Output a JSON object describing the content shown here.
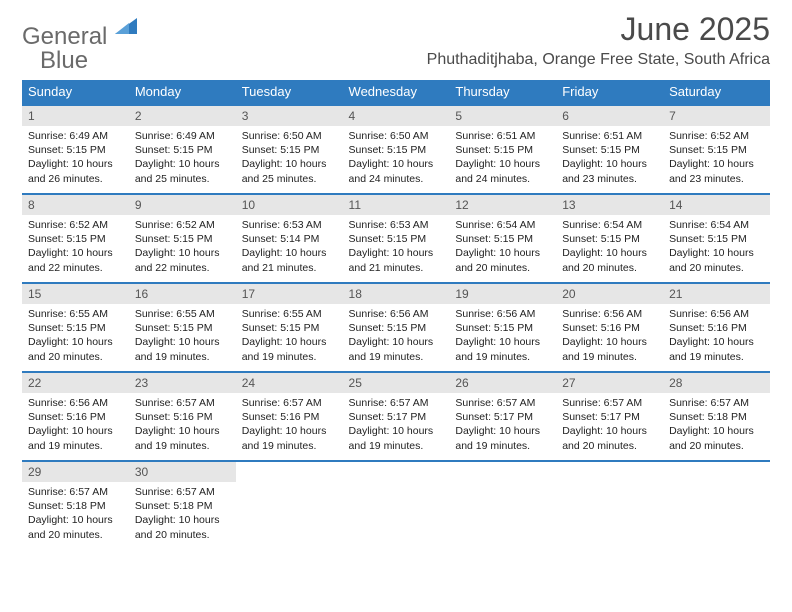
{
  "brand": {
    "word1": "General",
    "word2": "Blue"
  },
  "title": "June 2025",
  "location": "Phuthaditjhaba, Orange Free State, South Africa",
  "dow": [
    "Sunday",
    "Monday",
    "Tuesday",
    "Wednesday",
    "Thursday",
    "Friday",
    "Saturday"
  ],
  "colors": {
    "accent": "#2f7bbf",
    "header_bg": "#2f7bbf",
    "daynum_bg": "#e6e6e6",
    "text": "#222222",
    "muted": "#6a6a6a"
  },
  "days": [
    {
      "n": "1",
      "sunrise": "Sunrise: 6:49 AM",
      "sunset": "Sunset: 5:15 PM",
      "day1": "Daylight: 10 hours",
      "day2": "and 26 minutes."
    },
    {
      "n": "2",
      "sunrise": "Sunrise: 6:49 AM",
      "sunset": "Sunset: 5:15 PM",
      "day1": "Daylight: 10 hours",
      "day2": "and 25 minutes."
    },
    {
      "n": "3",
      "sunrise": "Sunrise: 6:50 AM",
      "sunset": "Sunset: 5:15 PM",
      "day1": "Daylight: 10 hours",
      "day2": "and 25 minutes."
    },
    {
      "n": "4",
      "sunrise": "Sunrise: 6:50 AM",
      "sunset": "Sunset: 5:15 PM",
      "day1": "Daylight: 10 hours",
      "day2": "and 24 minutes."
    },
    {
      "n": "5",
      "sunrise": "Sunrise: 6:51 AM",
      "sunset": "Sunset: 5:15 PM",
      "day1": "Daylight: 10 hours",
      "day2": "and 24 minutes."
    },
    {
      "n": "6",
      "sunrise": "Sunrise: 6:51 AM",
      "sunset": "Sunset: 5:15 PM",
      "day1": "Daylight: 10 hours",
      "day2": "and 23 minutes."
    },
    {
      "n": "7",
      "sunrise": "Sunrise: 6:52 AM",
      "sunset": "Sunset: 5:15 PM",
      "day1": "Daylight: 10 hours",
      "day2": "and 23 minutes."
    },
    {
      "n": "8",
      "sunrise": "Sunrise: 6:52 AM",
      "sunset": "Sunset: 5:15 PM",
      "day1": "Daylight: 10 hours",
      "day2": "and 22 minutes."
    },
    {
      "n": "9",
      "sunrise": "Sunrise: 6:52 AM",
      "sunset": "Sunset: 5:15 PM",
      "day1": "Daylight: 10 hours",
      "day2": "and 22 minutes."
    },
    {
      "n": "10",
      "sunrise": "Sunrise: 6:53 AM",
      "sunset": "Sunset: 5:14 PM",
      "day1": "Daylight: 10 hours",
      "day2": "and 21 minutes."
    },
    {
      "n": "11",
      "sunrise": "Sunrise: 6:53 AM",
      "sunset": "Sunset: 5:15 PM",
      "day1": "Daylight: 10 hours",
      "day2": "and 21 minutes."
    },
    {
      "n": "12",
      "sunrise": "Sunrise: 6:54 AM",
      "sunset": "Sunset: 5:15 PM",
      "day1": "Daylight: 10 hours",
      "day2": "and 20 minutes."
    },
    {
      "n": "13",
      "sunrise": "Sunrise: 6:54 AM",
      "sunset": "Sunset: 5:15 PM",
      "day1": "Daylight: 10 hours",
      "day2": "and 20 minutes."
    },
    {
      "n": "14",
      "sunrise": "Sunrise: 6:54 AM",
      "sunset": "Sunset: 5:15 PM",
      "day1": "Daylight: 10 hours",
      "day2": "and 20 minutes."
    },
    {
      "n": "15",
      "sunrise": "Sunrise: 6:55 AM",
      "sunset": "Sunset: 5:15 PM",
      "day1": "Daylight: 10 hours",
      "day2": "and 20 minutes."
    },
    {
      "n": "16",
      "sunrise": "Sunrise: 6:55 AM",
      "sunset": "Sunset: 5:15 PM",
      "day1": "Daylight: 10 hours",
      "day2": "and 19 minutes."
    },
    {
      "n": "17",
      "sunrise": "Sunrise: 6:55 AM",
      "sunset": "Sunset: 5:15 PM",
      "day1": "Daylight: 10 hours",
      "day2": "and 19 minutes."
    },
    {
      "n": "18",
      "sunrise": "Sunrise: 6:56 AM",
      "sunset": "Sunset: 5:15 PM",
      "day1": "Daylight: 10 hours",
      "day2": "and 19 minutes."
    },
    {
      "n": "19",
      "sunrise": "Sunrise: 6:56 AM",
      "sunset": "Sunset: 5:15 PM",
      "day1": "Daylight: 10 hours",
      "day2": "and 19 minutes."
    },
    {
      "n": "20",
      "sunrise": "Sunrise: 6:56 AM",
      "sunset": "Sunset: 5:16 PM",
      "day1": "Daylight: 10 hours",
      "day2": "and 19 minutes."
    },
    {
      "n": "21",
      "sunrise": "Sunrise: 6:56 AM",
      "sunset": "Sunset: 5:16 PM",
      "day1": "Daylight: 10 hours",
      "day2": "and 19 minutes."
    },
    {
      "n": "22",
      "sunrise": "Sunrise: 6:56 AM",
      "sunset": "Sunset: 5:16 PM",
      "day1": "Daylight: 10 hours",
      "day2": "and 19 minutes."
    },
    {
      "n": "23",
      "sunrise": "Sunrise: 6:57 AM",
      "sunset": "Sunset: 5:16 PM",
      "day1": "Daylight: 10 hours",
      "day2": "and 19 minutes."
    },
    {
      "n": "24",
      "sunrise": "Sunrise: 6:57 AM",
      "sunset": "Sunset: 5:16 PM",
      "day1": "Daylight: 10 hours",
      "day2": "and 19 minutes."
    },
    {
      "n": "25",
      "sunrise": "Sunrise: 6:57 AM",
      "sunset": "Sunset: 5:17 PM",
      "day1": "Daylight: 10 hours",
      "day2": "and 19 minutes."
    },
    {
      "n": "26",
      "sunrise": "Sunrise: 6:57 AM",
      "sunset": "Sunset: 5:17 PM",
      "day1": "Daylight: 10 hours",
      "day2": "and 19 minutes."
    },
    {
      "n": "27",
      "sunrise": "Sunrise: 6:57 AM",
      "sunset": "Sunset: 5:17 PM",
      "day1": "Daylight: 10 hours",
      "day2": "and 20 minutes."
    },
    {
      "n": "28",
      "sunrise": "Sunrise: 6:57 AM",
      "sunset": "Sunset: 5:18 PM",
      "day1": "Daylight: 10 hours",
      "day2": "and 20 minutes."
    },
    {
      "n": "29",
      "sunrise": "Sunrise: 6:57 AM",
      "sunset": "Sunset: 5:18 PM",
      "day1": "Daylight: 10 hours",
      "day2": "and 20 minutes."
    },
    {
      "n": "30",
      "sunrise": "Sunrise: 6:57 AM",
      "sunset": "Sunset: 5:18 PM",
      "day1": "Daylight: 10 hours",
      "day2": "and 20 minutes."
    }
  ]
}
